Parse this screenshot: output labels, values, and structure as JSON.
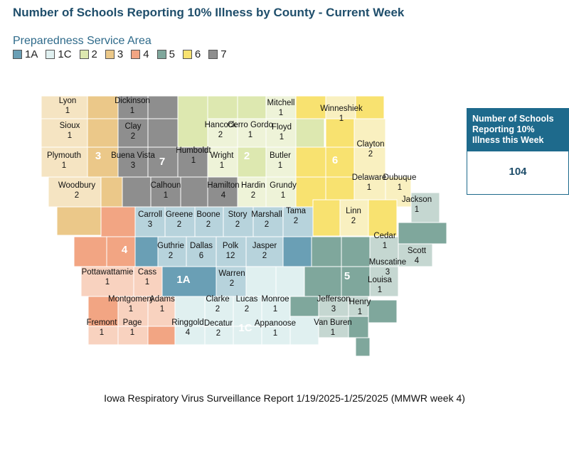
{
  "title": "Number of Schools Reporting 10% Illness by County - Current Week",
  "legend": {
    "title": "Preparedness Service Area",
    "items": [
      {
        "label": "1A",
        "color": "#6a9fb5"
      },
      {
        "label": "1C",
        "color": "#e0f0f0"
      },
      {
        "label": "2",
        "color": "#dde8b0"
      },
      {
        "label": "3",
        "color": "#ebc889"
      },
      {
        "label": "4",
        "color": "#f2a583"
      },
      {
        "label": "5",
        "color": "#7fa79c"
      },
      {
        "label": "6",
        "color": "#f8e270"
      },
      {
        "label": "7",
        "color": "#8e8e8e"
      }
    ]
  },
  "region_labels": [
    "3",
    "7",
    "2",
    "6",
    "4",
    "1A",
    "5",
    "1C"
  ],
  "counties": [
    {
      "name": "Lyon",
      "value": "1"
    },
    {
      "name": "Dickinson",
      "value": "1"
    },
    {
      "name": "Mitchell",
      "value": "1"
    },
    {
      "name": "Sioux",
      "value": "1"
    },
    {
      "name": "Clay",
      "value": "2"
    },
    {
      "name": "Hancock",
      "value": "2"
    },
    {
      "name": "Cerro Gordo",
      "value": "1"
    },
    {
      "name": "Floyd",
      "value": "1"
    },
    {
      "name": "Winneshiek",
      "value": "1"
    },
    {
      "name": "Plymouth",
      "value": "1"
    },
    {
      "name": "Buena Vista",
      "value": "3"
    },
    {
      "name": "Humboldt",
      "value": "1"
    },
    {
      "name": "Wright",
      "value": "1"
    },
    {
      "name": "Butler",
      "value": "1"
    },
    {
      "name": "Clayton",
      "value": "2"
    },
    {
      "name": "Woodbury",
      "value": "2"
    },
    {
      "name": "Calhoun",
      "value": "1"
    },
    {
      "name": "Hamilton",
      "value": "4"
    },
    {
      "name": "Hardin",
      "value": "2"
    },
    {
      "name": "Grundy",
      "value": "1"
    },
    {
      "name": "Delaware",
      "value": "1"
    },
    {
      "name": "Dubuque",
      "value": "1"
    },
    {
      "name": "Jackson",
      "value": "1"
    },
    {
      "name": "Carroll",
      "value": "3"
    },
    {
      "name": "Greene",
      "value": "2"
    },
    {
      "name": "Boone",
      "value": "2"
    },
    {
      "name": "Story",
      "value": "2"
    },
    {
      "name": "Marshall",
      "value": "2"
    },
    {
      "name": "Tama",
      "value": "2"
    },
    {
      "name": "Linn",
      "value": "2"
    },
    {
      "name": "Cedar",
      "value": "1"
    },
    {
      "name": "Guthrie",
      "value": "2"
    },
    {
      "name": "Dallas",
      "value": "6"
    },
    {
      "name": "Polk",
      "value": "12"
    },
    {
      "name": "Jasper",
      "value": "2"
    },
    {
      "name": "Scott",
      "value": "4"
    },
    {
      "name": "Muscatine",
      "value": "3"
    },
    {
      "name": "Pottawattamie",
      "value": "1"
    },
    {
      "name": "Cass",
      "value": "1"
    },
    {
      "name": "Warren",
      "value": "2"
    },
    {
      "name": "Louisa",
      "value": "1"
    },
    {
      "name": "Montgomery",
      "value": "1"
    },
    {
      "name": "Adams",
      "value": "1"
    },
    {
      "name": "Clarke",
      "value": "2"
    },
    {
      "name": "Lucas",
      "value": "2"
    },
    {
      "name": "Monroe",
      "value": "1"
    },
    {
      "name": "Jefferson",
      "value": "3"
    },
    {
      "name": "Henry",
      "value": "1"
    },
    {
      "name": "Fremont",
      "value": "1"
    },
    {
      "name": "Page",
      "value": "1"
    },
    {
      "name": "Ringgold",
      "value": "4"
    },
    {
      "name": "Decatur",
      "value": "2"
    },
    {
      "name": "Appanoose",
      "value": "1"
    },
    {
      "name": "Van Buren",
      "value": "1"
    }
  ],
  "kpi": {
    "label": "Number of Schools Reporting 10% Illness this Week",
    "value": "104"
  },
  "footer": "Iowa Respiratory Virus Surveillance Report 1/19/2025-1/25/2025 (MMWR week 4)"
}
